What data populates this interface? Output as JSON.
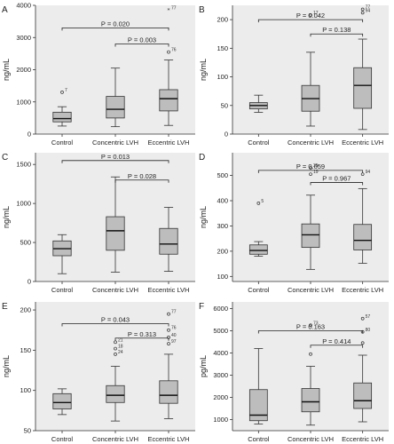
{
  "chart_data": [
    {
      "panel": "A",
      "type": "box",
      "ylabel": "ng/mL",
      "ylim": [
        0,
        4000
      ],
      "yticks": [
        0,
        1000,
        2000,
        3000,
        4000
      ],
      "categories": [
        "Control",
        "Concentric LVH",
        "Eccentric LVH"
      ],
      "boxes": [
        {
          "low": 250,
          "q1": 380,
          "median": 480,
          "q3": 680,
          "high": 850,
          "outliers": [
            {
              "value": 1300,
              "label": "7",
              "star": false
            }
          ]
        },
        {
          "low": 230,
          "q1": 500,
          "median": 770,
          "q3": 1170,
          "high": 2050,
          "outliers": []
        },
        {
          "low": 270,
          "q1": 720,
          "median": 1100,
          "q3": 1380,
          "high": 2300,
          "outliers": [
            {
              "value": 2550,
              "label": "76",
              "star": false
            },
            {
              "value": 3850,
              "label": "77",
              "star": true
            }
          ]
        }
      ],
      "comparisons": [
        {
          "from": 0,
          "to": 2,
          "level": 3300,
          "text": "P = 0.020"
        },
        {
          "from": 1,
          "to": 2,
          "level": 2800,
          "text": "P = 0.003"
        }
      ]
    },
    {
      "panel": "B",
      "type": "box",
      "ylabel": "ng/mL",
      "ylim": [
        0,
        225
      ],
      "yticks": [
        0,
        50,
        100,
        150,
        200
      ],
      "categories": [
        "Control",
        "Concentric LVH",
        "Eccentric LVH"
      ],
      "boxes": [
        {
          "low": 38,
          "q1": 44,
          "median": 50,
          "q3": 55,
          "high": 68,
          "outliers": []
        },
        {
          "low": 14,
          "q1": 40,
          "median": 62,
          "q3": 85,
          "high": 143,
          "outliers": [
            {
              "value": 208,
              "label": "17",
              "star": false
            }
          ]
        },
        {
          "low": 8,
          "q1": 45,
          "median": 85,
          "q3": 116,
          "high": 166,
          "outliers": [
            {
              "value": 212,
              "label": "94",
              "star": false
            },
            {
              "value": 218,
              "label": "77",
              "star": false
            }
          ]
        }
      ],
      "comparisons": [
        {
          "from": 0,
          "to": 2,
          "level": 200,
          "text": "P = 0.042"
        },
        {
          "from": 1,
          "to": 2,
          "level": 175,
          "text": "P = 0.138"
        }
      ]
    },
    {
      "panel": "C",
      "type": "box",
      "ylabel": "ng/mL",
      "ylim": [
        0,
        1650
      ],
      "yticks": [
        0,
        500,
        1000,
        1500
      ],
      "categories": [
        "Control",
        "Concentric LVH",
        "Eccentric LVH"
      ],
      "boxes": [
        {
          "low": 100,
          "q1": 330,
          "median": 420,
          "q3": 520,
          "high": 600,
          "outliers": []
        },
        {
          "low": 120,
          "q1": 400,
          "median": 650,
          "q3": 830,
          "high": 1340,
          "outliers": []
        },
        {
          "low": 130,
          "q1": 350,
          "median": 480,
          "q3": 680,
          "high": 950,
          "outliers": []
        }
      ],
      "comparisons": [
        {
          "from": 0,
          "to": 2,
          "level": 1550,
          "text": "P = 0.013"
        },
        {
          "from": 1,
          "to": 2,
          "level": 1300,
          "text": "P = 0.028"
        }
      ]
    },
    {
      "panel": "D",
      "type": "box",
      "ylabel": "ng/mL",
      "ylim": [
        80,
        590
      ],
      "yticks": [
        100,
        200,
        300,
        400,
        500
      ],
      "categories": [
        "Control",
        "Concentric LVH",
        "Eccentric LVH"
      ],
      "boxes": [
        {
          "low": 180,
          "q1": 188,
          "median": 203,
          "q3": 225,
          "high": 238,
          "outliers": [
            {
              "value": 390,
              "label": "5",
              "star": false
            }
          ]
        },
        {
          "low": 128,
          "q1": 215,
          "median": 265,
          "q3": 308,
          "high": 422,
          "outliers": [
            {
              "value": 530,
              "label": "35",
              "star": false
            },
            {
              "value": 505,
              "label": "19",
              "star": false
            }
          ]
        },
        {
          "low": 152,
          "q1": 205,
          "median": 243,
          "q3": 306,
          "high": 448,
          "outliers": [
            {
              "value": 505,
              "label": "94",
              "star": false
            }
          ]
        }
      ],
      "comparisons": [
        {
          "from": 0,
          "to": 2,
          "level": 520,
          "text": "P = 0.059"
        },
        {
          "from": 1,
          "to": 2,
          "level": 472,
          "text": "P = 0.967"
        }
      ]
    },
    {
      "panel": "E",
      "type": "box",
      "ylabel": "ng/mL",
      "ylim": [
        50,
        210
      ],
      "yticks": [
        50,
        100,
        150,
        200
      ],
      "categories": [
        "Control",
        "Concentric LVH",
        "Eccentric LVH"
      ],
      "boxes": [
        {
          "low": 70,
          "q1": 77,
          "median": 85,
          "q3": 96,
          "high": 102,
          "outliers": []
        },
        {
          "low": 62,
          "q1": 85,
          "median": 94,
          "q3": 106,
          "high": 130,
          "outliers": [
            {
              "value": 160,
              "label": "21",
              "star": false
            },
            {
              "value": 152,
              "label": "18",
              "star": false
            },
            {
              "value": 145,
              "label": "24",
              "star": false
            }
          ]
        },
        {
          "low": 65,
          "q1": 84,
          "median": 94,
          "q3": 112,
          "high": 145,
          "outliers": [
            {
              "value": 195,
              "label": "77",
              "star": false
            },
            {
              "value": 175,
              "label": "76",
              "star": false
            },
            {
              "value": 166,
              "label": "40",
              "star": false
            },
            {
              "value": 158,
              "label": "97",
              "star": false
            }
          ]
        }
      ],
      "comparisons": [
        {
          "from": 0,
          "to": 2,
          "level": 183,
          "text": "P = 0.043"
        },
        {
          "from": 1,
          "to": 2,
          "level": 165,
          "text": "P = 0.313"
        }
      ]
    },
    {
      "panel": "F",
      "type": "box",
      "ylabel": "pg/mL",
      "ylim": [
        500,
        6300
      ],
      "yticks": [
        1000,
        2000,
        3000,
        4000,
        5000,
        6000
      ],
      "categories": [
        "Control",
        "Concentric LVH",
        "Eccentric LVH"
      ],
      "boxes": [
        {
          "low": 800,
          "q1": 950,
          "median": 1200,
          "q3": 2350,
          "high": 4200,
          "outliers": []
        },
        {
          "low": 750,
          "q1": 1350,
          "median": 1800,
          "q3": 2400,
          "high": 3400,
          "outliers": [
            {
              "value": 5250,
              "label": "73",
              "star": false
            },
            {
              "value": 3950,
              "label": "",
              "star": false
            }
          ]
        },
        {
          "low": 900,
          "q1": 1500,
          "median": 1850,
          "q3": 2650,
          "high": 3900,
          "outliers": [
            {
              "value": 5550,
              "label": "57",
              "star": false
            },
            {
              "value": 4950,
              "label": "80",
              "star": false
            },
            {
              "value": 4450,
              "label": "",
              "star": false
            }
          ]
        }
      ],
      "comparisons": [
        {
          "from": 0,
          "to": 2,
          "level": 5000,
          "text": "P = 0.163"
        },
        {
          "from": 1,
          "to": 2,
          "level": 4350,
          "text": "P = 0.414"
        }
      ]
    }
  ]
}
